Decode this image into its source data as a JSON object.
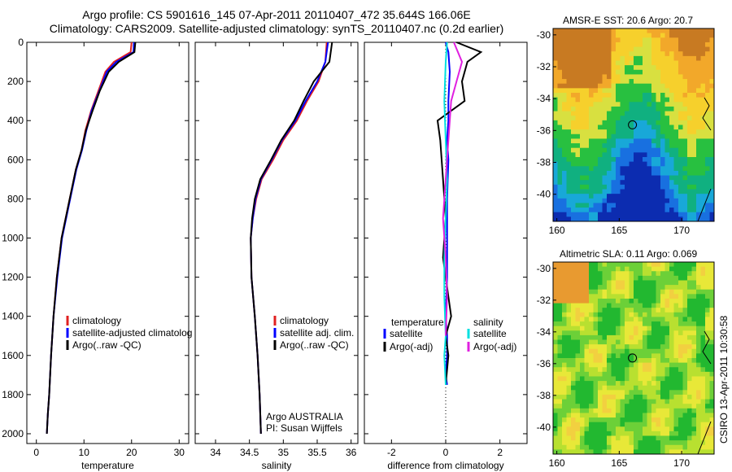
{
  "header": {
    "line1": "Argo profile: CS 5901616_145 07-Apr-2011 20110407_472 35.644S 166.06E",
    "line2": "Climatology: CARS2009. Satellite-adjusted climatology: synTS_20110407.nc (0.2d earlier)"
  },
  "credit": "CSIRO 13-Apr-2011 10:30:58",
  "colors": {
    "climatology": "#e02020",
    "satellite": "#0000ff",
    "argo": "#000000",
    "salinity_satellite": "#00e0e0",
    "salinity_argo": "#e020e0"
  },
  "chart_data": [
    {
      "type": "line",
      "xlabel": "temperature",
      "ylabel": "",
      "xlim": [
        -2,
        32
      ],
      "ylim": [
        2050,
        0
      ],
      "xticks": [
        "0",
        "10",
        "20",
        "30"
      ],
      "yticks": [
        "0",
        "200",
        "400",
        "600",
        "800",
        "1000",
        "1200",
        "1400",
        "1600",
        "1800",
        "2000"
      ],
      "legend": [
        "climatology",
        "satellite-adjusted climatolog",
        "Argo(..raw -QC)"
      ],
      "series": [
        {
          "name": "climatology",
          "x": [
            20.0,
            19.8,
            16.3,
            14.5,
            13.0,
            11.5,
            10.3,
            9.5,
            8.3,
            7.0,
            5.3,
            4.3,
            3.6,
            3.1,
            2.7,
            2.4,
            2.2
          ],
          "y": [
            0,
            50,
            100,
            150,
            250,
            350,
            450,
            550,
            650,
            800,
            1000,
            1200,
            1400,
            1600,
            1800,
            1900,
            2000
          ]
        },
        {
          "name": "satellite-adjusted climatolog",
          "x": [
            20.5,
            20.4,
            16.8,
            14.8,
            13.2,
            11.6,
            10.5,
            9.6,
            8.4,
            7.1,
            5.4,
            4.4,
            3.6,
            3.1,
            2.7,
            2.4,
            2.2
          ],
          "y": [
            0,
            50,
            100,
            150,
            250,
            350,
            450,
            550,
            650,
            800,
            1000,
            1200,
            1400,
            1600,
            1800,
            1900,
            2000
          ]
        },
        {
          "name": "Argo(..raw -QC)",
          "x": [
            20.8,
            20.6,
            17.3,
            15.2,
            13.3,
            11.8,
            10.4,
            9.5,
            8.3,
            7.0,
            5.3,
            4.3,
            3.6,
            3.1,
            2.7,
            2.4,
            2.2
          ],
          "y": [
            0,
            50,
            100,
            150,
            250,
            350,
            450,
            550,
            650,
            800,
            1000,
            1200,
            1400,
            1600,
            1800,
            1900,
            2000
          ]
        }
      ]
    },
    {
      "type": "line",
      "xlabel": "salinity",
      "xlim": [
        33.7,
        36.1
      ],
      "ylim": [
        2050,
        0
      ],
      "xticks": [
        "34",
        "34.5",
        "35",
        "35.5",
        "36"
      ],
      "legend": [
        "climatology",
        "satellite adj. clim.",
        "Argo(..raw -QC)"
      ],
      "annotation": [
        "Argo AUSTRALIA",
        "PI: Susan Wijffels"
      ],
      "series": [
        {
          "name": "climatology",
          "x": [
            35.64,
            35.62,
            35.52,
            35.35,
            35.2,
            35.0,
            34.85,
            34.68,
            34.6,
            34.55,
            34.52,
            34.53,
            34.58,
            34.62,
            34.65,
            34.67
          ],
          "y": [
            0,
            100,
            200,
            300,
            400,
            500,
            600,
            700,
            800,
            900,
            1000,
            1200,
            1400,
            1600,
            1800,
            2000
          ]
        },
        {
          "name": "satellite adj. clim.",
          "x": [
            35.66,
            35.62,
            35.5,
            35.33,
            35.18,
            34.98,
            34.83,
            34.67,
            34.59,
            34.55,
            34.52,
            34.53,
            34.58,
            34.62,
            34.65,
            34.67
          ],
          "y": [
            0,
            100,
            200,
            300,
            400,
            500,
            600,
            700,
            800,
            900,
            1000,
            1200,
            1400,
            1600,
            1800,
            2000
          ]
        },
        {
          "name": "Argo(..raw -QC)",
          "x": [
            35.72,
            35.68,
            35.45,
            35.3,
            35.16,
            34.97,
            34.82,
            34.66,
            34.58,
            34.54,
            34.52,
            34.53,
            34.58,
            34.62,
            34.65,
            34.67
          ],
          "y": [
            0,
            100,
            200,
            300,
            400,
            500,
            600,
            700,
            800,
            900,
            1000,
            1200,
            1400,
            1600,
            1800,
            2000
          ]
        }
      ]
    },
    {
      "type": "line",
      "xlabel": "difference from climatology",
      "xlim": [
        -3,
        3
      ],
      "ylim": [
        2050,
        0
      ],
      "xticks": [
        "-2",
        "0",
        "2"
      ],
      "legend_headers": [
        "temperature",
        "salinity"
      ],
      "legend": [
        "satellite",
        "Argo(-adj)",
        "satellite",
        "Argo(-adj)"
      ],
      "series": [
        {
          "name": "temperature satellite",
          "x": [
            0.0,
            0.1,
            0.15,
            0.1,
            0.1,
            0.05,
            0.1,
            0.05,
            0.05,
            0.05,
            0.0,
            0.05,
            0.05,
            0.0,
            0.05
          ],
          "y": [
            0,
            50,
            150,
            300,
            400,
            500,
            600,
            800,
            1000,
            1200,
            1400,
            1500,
            1600,
            1700,
            1750
          ]
        },
        {
          "name": "temperature Argo(-adj)",
          "x": [
            0.4,
            1.3,
            0.8,
            0.6,
            0.7,
            -0.3,
            -0.2,
            -0.1,
            0.0,
            -0.1,
            0.1,
            0.2,
            0.0,
            0.1,
            0.0
          ],
          "y": [
            0,
            50,
            100,
            200,
            300,
            400,
            500,
            700,
            900,
            1100,
            1300,
            1400,
            1500,
            1600,
            1750
          ]
        },
        {
          "name": "salinity satellite",
          "x": [
            0.05,
            0.0,
            -0.05,
            0.0,
            0.05,
            0.0,
            -0.05,
            -0.05,
            0.0,
            -0.05,
            0.0
          ],
          "y": [
            0,
            100,
            300,
            500,
            700,
            900,
            1100,
            1300,
            1500,
            1600,
            1750
          ]
        },
        {
          "name": "salinity Argo(-adj)",
          "x": [
            0.3,
            0.6,
            0.4,
            0.2,
            0.1,
            0.0,
            -0.1,
            0.0,
            0.05,
            0.0
          ],
          "y": [
            0,
            100,
            200,
            300,
            500,
            700,
            900,
            1100,
            1300,
            1500
          ]
        }
      ],
      "reference_line_x": 0
    }
  ],
  "maps": [
    {
      "title": "AMSR-E SST: 20.6 Argo: 20.7",
      "xticks": [
        "160",
        "165",
        "170"
      ],
      "yticks": [
        "-30",
        "-32",
        "-34",
        "-36",
        "-38",
        "-40"
      ]
    },
    {
      "title": "Altimetric SLA: 0.11 Argo: 0.069",
      "xticks": [
        "160",
        "165",
        "170"
      ],
      "yticks": [
        "-30",
        "-32",
        "-34",
        "-36",
        "-38",
        "-40"
      ]
    }
  ]
}
